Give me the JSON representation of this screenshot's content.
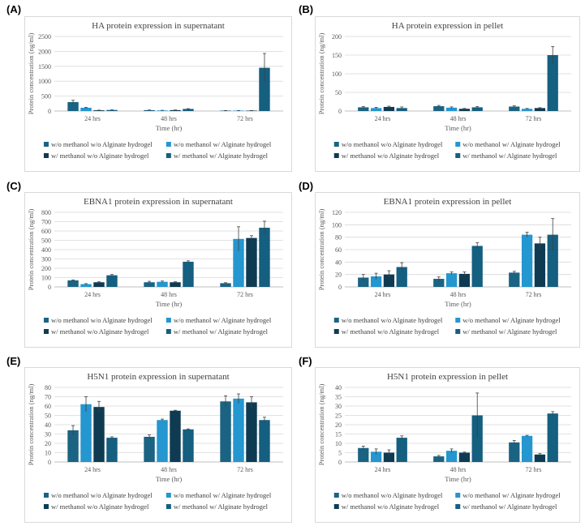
{
  "colors": {
    "wo_methanol_wo_alginate": "#1b6382",
    "wo_methanol_w_alginate": "#2496d0",
    "w_methanol_wo_alginate": "#0f3b52",
    "w_methanol_w_alginate": "#155f80",
    "error_bar": "#404040",
    "gridline": "#d9d9d9"
  },
  "panels": [
    "(A)",
    "(B)",
    "(C)",
    "(D)",
    "(E)",
    "(F)"
  ],
  "chart_data": [
    {
      "type": "bar",
      "title": "HA protein expression in supernatant",
      "xlabel": "Time (hr)",
      "ylabel": "Protein concentration (ng/ml)",
      "categories": [
        "24 hrs",
        "48 hrs",
        "72 hrs"
      ],
      "ylim": [
        0,
        2500
      ],
      "yticks": [
        "0",
        "500",
        "1000",
        "1500",
        "2000",
        "2500"
      ],
      "grid": true,
      "legend_position": "bottom",
      "series": [
        {
          "name": "w/o methanol w/o Alginate hydrogel",
          "values": [
            300,
            30,
            15
          ],
          "errors": [
            60,
            5,
            3
          ]
        },
        {
          "name": "w/o methanol w/ Alginate hydrogel",
          "values": [
            110,
            20,
            15
          ],
          "errors": [
            15,
            4,
            3
          ]
        },
        {
          "name": "w/ methanol w/o Alginate hydrogel",
          "values": [
            25,
            30,
            15
          ],
          "errors": [
            5,
            5,
            3
          ]
        },
        {
          "name": "w/ methanol w/ Alginate hydrogel",
          "values": [
            35,
            70,
            1450
          ],
          "errors": [
            5,
            10,
            480
          ]
        }
      ]
    },
    {
      "type": "bar",
      "title": "HA protein expression in pellet",
      "xlabel": "Time (hr)",
      "ylabel": "Protein concentration (ng/ml)",
      "categories": [
        "24 hrs",
        "48 hrs",
        "72 hrs"
      ],
      "ylim": [
        0,
        200
      ],
      "yticks": [
        "0",
        "50",
        "100",
        "150",
        "200"
      ],
      "grid": true,
      "legend_position": "bottom",
      "series": [
        {
          "name": "w/o methanol w/o Alginate hydrogel",
          "values": [
            10,
            13,
            12
          ],
          "errors": [
            2,
            2,
            2
          ]
        },
        {
          "name": "w/o methanol w/ Alginate hydrogel",
          "values": [
            8,
            9,
            6
          ],
          "errors": [
            2,
            2,
            1
          ]
        },
        {
          "name": "w/ methanol w/o Alginate hydrogel",
          "values": [
            11,
            6,
            8
          ],
          "errors": [
            2,
            1,
            1
          ]
        },
        {
          "name": "w/ methanol w/ Alginate hydrogel",
          "values": [
            8,
            10,
            150
          ],
          "errors": [
            3,
            2,
            23
          ]
        }
      ]
    },
    {
      "type": "bar",
      "title": "EBNA1 protein expression in supernatant",
      "xlabel": "Time (hr)",
      "ylabel": "Protein concentration (ng/ml)",
      "categories": [
        "24 hrs",
        "48 hrs",
        "72 hrs"
      ],
      "ylim": [
        0,
        800
      ],
      "yticks": [
        "0",
        "100",
        "200",
        "300",
        "400",
        "500",
        "600",
        "700",
        "800"
      ],
      "grid": true,
      "legend_position": "bottom",
      "series": [
        {
          "name": "w/o methanol w/o Alginate hydrogel",
          "values": [
            70,
            50,
            40
          ],
          "errors": [
            5,
            10,
            5
          ]
        },
        {
          "name": "w/o methanol w/ Alginate hydrogel",
          "values": [
            30,
            55,
            515
          ],
          "errors": [
            5,
            8,
            130
          ]
        },
        {
          "name": "w/ methanol w/o Alginate hydrogel",
          "values": [
            50,
            50,
            525
          ],
          "errors": [
            5,
            5,
            25
          ]
        },
        {
          "name": "w/ methanol w/ Alginate hydrogel",
          "values": [
            125,
            270,
            635
          ],
          "errors": [
            8,
            10,
            70
          ]
        }
      ]
    },
    {
      "type": "bar",
      "title": "EBNA1 protein expression in pellet",
      "xlabel": "Time (hr)",
      "ylabel": "Protein concentration (ng/ml)",
      "categories": [
        "24 hrs",
        "48 hrs",
        "72 hrs"
      ],
      "ylim": [
        0,
        120
      ],
      "yticks": [
        "0",
        "20",
        "40",
        "60",
        "80",
        "100",
        "120"
      ],
      "grid": true,
      "legend_position": "bottom",
      "series": [
        {
          "name": "w/o methanol w/o Alginate hydrogel",
          "values": [
            15,
            13,
            23
          ],
          "errors": [
            5,
            3,
            2
          ]
        },
        {
          "name": "w/o methanol w/ Alginate hydrogel",
          "values": [
            17,
            22,
            84
          ],
          "errors": [
            5,
            2,
            4
          ]
        },
        {
          "name": "w/ methanol w/o Alginate hydrogel",
          "values": [
            20,
            21,
            70
          ],
          "errors": [
            6,
            3,
            10
          ]
        },
        {
          "name": "w/ methanol w/ Alginate hydrogel",
          "values": [
            32,
            66,
            84
          ],
          "errors": [
            7,
            5,
            26
          ]
        }
      ]
    },
    {
      "type": "bar",
      "title": "H5N1 protein expression in supernatant",
      "xlabel": "Time (hr)",
      "ylabel": "Protein concentration (ng/ml)",
      "categories": [
        "24 hrs",
        "48 hrs",
        "72 hrs"
      ],
      "ylim": [
        0,
        80
      ],
      "yticks": [
        "0",
        "10",
        "20",
        "30",
        "40",
        "50",
        "60",
        "70",
        "80"
      ],
      "grid": true,
      "legend_position": "bottom",
      "series": [
        {
          "name": "w/o methanol w/o Alginate hydrogel",
          "values": [
            34,
            27,
            65
          ],
          "errors": [
            5,
            2,
            6
          ]
        },
        {
          "name": "w/o methanol w/ Alginate hydrogel",
          "values": [
            62,
            45,
            68
          ],
          "errors": [
            8,
            1,
            5
          ]
        },
        {
          "name": "w/ methanol w/o Alginate hydrogel",
          "values": [
            59,
            55,
            64
          ],
          "errors": [
            6,
            0.5,
            6
          ]
        },
        {
          "name": "w/ methanol w/ Alginate hydrogel",
          "values": [
            26,
            35,
            45
          ],
          "errors": [
            1,
            0.5,
            3
          ]
        }
      ]
    },
    {
      "type": "bar",
      "title": "H5N1 protein expression in pellet",
      "xlabel": "Time (hr)",
      "ylabel": "Protein concentration (ng/ml)",
      "categories": [
        "24 hrs",
        "48 hrs",
        "72 hrs"
      ],
      "ylim": [
        0,
        40
      ],
      "yticks": [
        "0",
        "5",
        "10",
        "15",
        "20",
        "25",
        "30",
        "35",
        "40"
      ],
      "grid": true,
      "legend_position": "bottom",
      "series": [
        {
          "name": "w/o methanol w/o Alginate hydrogel",
          "values": [
            7.5,
            3,
            10.5
          ],
          "errors": [
            1,
            0.5,
            1
          ]
        },
        {
          "name": "w/o methanol w/ Alginate hydrogel",
          "values": [
            5.5,
            6,
            14
          ],
          "errors": [
            1.5,
            1,
            0.3
          ]
        },
        {
          "name": "w/ methanol w/o Alginate hydrogel",
          "values": [
            5,
            5,
            4
          ],
          "errors": [
            1.5,
            0.3,
            0.5
          ]
        },
        {
          "name": "w/ methanol w/ Alginate hydrogel",
          "values": [
            13,
            25,
            26
          ],
          "errors": [
            1,
            12,
            1
          ]
        }
      ]
    }
  ]
}
